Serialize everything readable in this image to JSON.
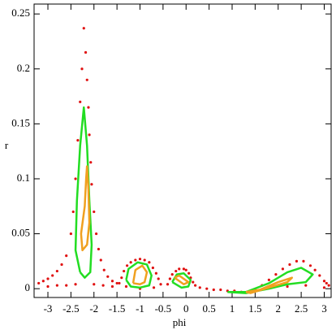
{
  "chart_data": {
    "type": "scatter",
    "x_label": "phi",
    "y_label": "r",
    "xlim": [
      -3.3,
      3.15
    ],
    "ylim": [
      -0.008,
      0.259
    ],
    "xticks": [
      -3,
      -2.5,
      -2,
      -1.5,
      -1,
      -0.5,
      0,
      0.5,
      1,
      1.5,
      2,
      2.5,
      3
    ],
    "yticks": [
      0,
      0.05,
      0.1,
      0.15,
      0.2,
      0.25
    ],
    "series": [
      {
        "color": "#e01010",
        "marker": "dot",
        "x": [
          -3.2,
          -3.1,
          -3.0,
          -2.9,
          -2.8,
          -2.7,
          -2.6,
          -2.5,
          -2.45,
          -2.4,
          -2.35,
          -2.3,
          -2.26,
          -2.22,
          -2.18,
          -2.15,
          -2.12,
          -2.1,
          -2.07,
          -2.05,
          -2.0,
          -1.95,
          -1.9,
          -1.85,
          -1.78,
          -1.7,
          -1.6,
          -1.5,
          -3.0,
          -2.8,
          -2.6,
          -2.4,
          -2.0,
          -1.8,
          -1.6,
          -1.45,
          -1.4,
          -1.35,
          -1.28,
          -1.2,
          -1.1,
          -1.0,
          -0.9,
          -0.8,
          -0.72,
          -0.65,
          -0.6,
          -0.55,
          -1.3,
          -1.0,
          -0.7,
          -0.4,
          -0.35,
          -0.3,
          -0.22,
          -0.15,
          -0.05,
          0.0,
          0.06,
          0.1,
          0.15,
          0.2,
          0.3,
          0.45,
          0.6,
          0.75,
          0.9,
          1.05,
          1.2,
          1.35,
          1.5,
          1.65,
          1.8,
          1.95,
          2.1,
          2.25,
          2.4,
          2.55,
          2.7,
          2.8,
          2.9,
          3.0,
          3.05,
          3.1,
          2.2,
          2.6,
          3.0
        ],
        "values": [
          0.005,
          0.007,
          0.009,
          0.012,
          0.016,
          0.022,
          0.03,
          0.05,
          0.07,
          0.1,
          0.135,
          0.17,
          0.2,
          0.237,
          0.215,
          0.19,
          0.165,
          0.14,
          0.115,
          0.095,
          0.07,
          0.05,
          0.036,
          0.026,
          0.017,
          0.011,
          0.007,
          0.005,
          0.002,
          0.003,
          0.003,
          0.004,
          0.004,
          0.003,
          0.002,
          0.005,
          0.01,
          0.016,
          0.021,
          0.024,
          0.026,
          0.027,
          0.026,
          0.024,
          0.019,
          0.014,
          0.009,
          0.004,
          0.002,
          0.0,
          0.001,
          0.004,
          0.009,
          0.013,
          0.016,
          0.018,
          0.018,
          0.017,
          0.014,
          0.01,
          0.006,
          0.003,
          0.001,
          0.0,
          -0.001,
          -0.001,
          -0.002,
          -0.002,
          -0.003,
          -0.003,
          -0.001,
          0.003,
          0.008,
          0.013,
          0.018,
          0.022,
          0.025,
          0.025,
          0.021,
          0.017,
          0.012,
          0.007,
          0.005,
          0.003,
          0.002,
          0.003,
          0.001
        ]
      },
      {
        "color": "#22dd22",
        "marker": "line",
        "x": [
          -2.3,
          -2.4,
          -2.37,
          -2.3,
          -2.22,
          -2.15,
          -2.1,
          -2.05,
          -2.08,
          -2.2,
          -2.3,
          null,
          -1.3,
          -1.25,
          -1.05,
          -0.85,
          -0.75,
          -0.8,
          -1.0,
          -1.2,
          -1.3,
          null,
          -0.3,
          -0.2,
          -0.05,
          0.1,
          0.05,
          -0.1,
          -0.3,
          null,
          0.9,
          1.3,
          1.8,
          2.2,
          2.5,
          2.75,
          2.6,
          2.2,
          1.8,
          1.3,
          0.9
        ],
        "values": [
          0.015,
          0.035,
          0.08,
          0.13,
          0.165,
          0.13,
          0.08,
          0.04,
          0.015,
          0.01,
          0.015,
          null,
          0.008,
          0.018,
          0.024,
          0.022,
          0.012,
          0.003,
          0.001,
          0.002,
          0.008,
          null,
          0.006,
          0.013,
          0.014,
          0.008,
          0.002,
          0.001,
          0.006,
          null,
          -0.003,
          -0.003,
          0.005,
          0.015,
          0.019,
          0.013,
          0.006,
          0.004,
          0.0,
          -0.004,
          -0.003
        ]
      },
      {
        "color": "#f0a020",
        "marker": "line",
        "x": [
          -2.15,
          -2.12,
          -2.1,
          -2.15,
          -2.25,
          -2.28,
          -2.2,
          -2.17,
          -2.15,
          null,
          -1.15,
          -1.1,
          -0.95,
          -0.85,
          -0.9,
          -1.0,
          -1.15,
          null,
          -0.25,
          -0.15,
          0.05,
          -0.05,
          -0.25,
          null,
          1.3,
          1.6,
          2.0,
          2.3,
          2.2,
          1.8,
          1.4,
          1.3
        ],
        "values": [
          0.112,
          0.09,
          0.06,
          0.04,
          0.035,
          0.05,
          0.075,
          0.1,
          0.112,
          null,
          0.005,
          0.017,
          0.021,
          0.015,
          0.006,
          0.004,
          0.005,
          null,
          0.01,
          0.012,
          0.006,
          0.004,
          0.01,
          null,
          -0.003,
          -0.001,
          0.006,
          0.01,
          0.006,
          0.001,
          -0.004,
          -0.003
        ]
      }
    ]
  }
}
